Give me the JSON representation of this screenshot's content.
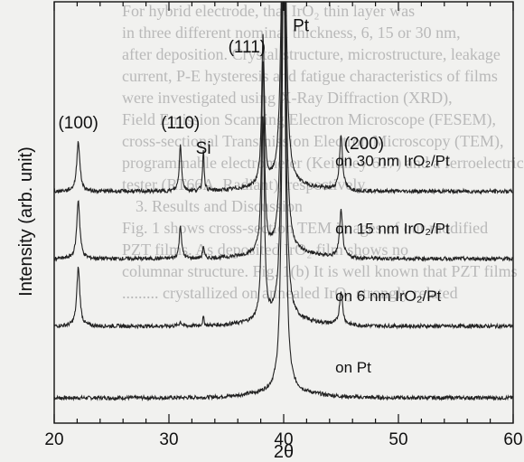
{
  "background_text": [
    "For hybrid electrode, that IrO₂ thin layer was",
    "in three different nominal thickness, 6, 15 or 30 nm,",
    "after deposition. Crystal structure, microstructure, leakage",
    "current, P-E hysteresis and fatigue characteristics of films",
    "were investigated using X-Ray Diffraction (XRD),",
    "Field Emission Scanning Electron Microscope (FESEM),",
    "cross-sectional Transmission Electron Microscopy (TEM),",
    "programmable electrometer (Keithley 617) and a ferroelectric",
    "tester (RT66A, Radiant), respectively.",
    "",
    "3. Results and Discussion",
    "",
    "Fig. 1 shows cross-section TEM images of our modified",
    "PZT films. As deposited IrO₂ film shows no",
    "columnar structure. Fig. 1(b) It is well known that PZT films",
    "......... crystallized on annealed IrO₂ strongly related"
  ],
  "chart_data": {
    "type": "line",
    "xlabel": "2θ",
    "ylabel": "Intensity (arb. unit)",
    "xlim": [
      20,
      60
    ],
    "xticks": [
      20,
      30,
      40,
      50,
      60
    ],
    "ylim": [
      0,
      100
    ],
    "series": [
      {
        "name": "on Pt",
        "offset": 6
      },
      {
        "name": "on 6 nm IrO₂/Pt",
        "offset": 23
      },
      {
        "name": "on 15 nm IrO₂/Pt",
        "offset": 39
      },
      {
        "name": "on 30 nm IrO₂/Pt",
        "offset": 55
      }
    ],
    "peaks": [
      {
        "label": "(100)",
        "x": 22.1
      },
      {
        "label": "(110)",
        "x": 31.0
      },
      {
        "label": "Si",
        "x": 33.0
      },
      {
        "label": "(111)",
        "x": 38.2
      },
      {
        "label": "Pt",
        "x": 40.0
      },
      {
        "label": "(200)",
        "x": 45.0
      }
    ],
    "peak_labels": [
      {
        "text": "(100)",
        "x": 22.1,
        "y": 70
      },
      {
        "text": "(110)",
        "x": 31.0,
        "y": 70
      },
      {
        "text": "Si",
        "x": 33.0,
        "y": 64
      },
      {
        "text": "(111)",
        "x": 36.8,
        "y": 88
      },
      {
        "text": "Pt",
        "x": 41.5,
        "y": 93
      },
      {
        "text": "(200)",
        "x": 47.0,
        "y": 65
      }
    ],
    "peak_heights": {
      "on Pt": {
        "22.1": 0,
        "31.0": 0,
        "33.0": 0,
        "38.2": 0,
        "40.0": 110,
        "45.0": 0
      },
      "on 6 nm IrO₂/Pt": {
        "22.1": 14,
        "31.0": 1,
        "33.0": 2,
        "38.2": 48,
        "40.0": 110,
        "45.0": 8
      },
      "on 15 nm IrO₂/Pt": {
        "22.1": 14,
        "31.0": 8,
        "33.0": 3,
        "38.2": 45,
        "40.0": 110,
        "45.0": 11
      },
      "on 30 nm IrO₂/Pt": {
        "22.1": 12,
        "31.0": 11,
        "33.0": 10,
        "38.2": 35,
        "40.0": 110,
        "45.0": 13
      }
    }
  }
}
